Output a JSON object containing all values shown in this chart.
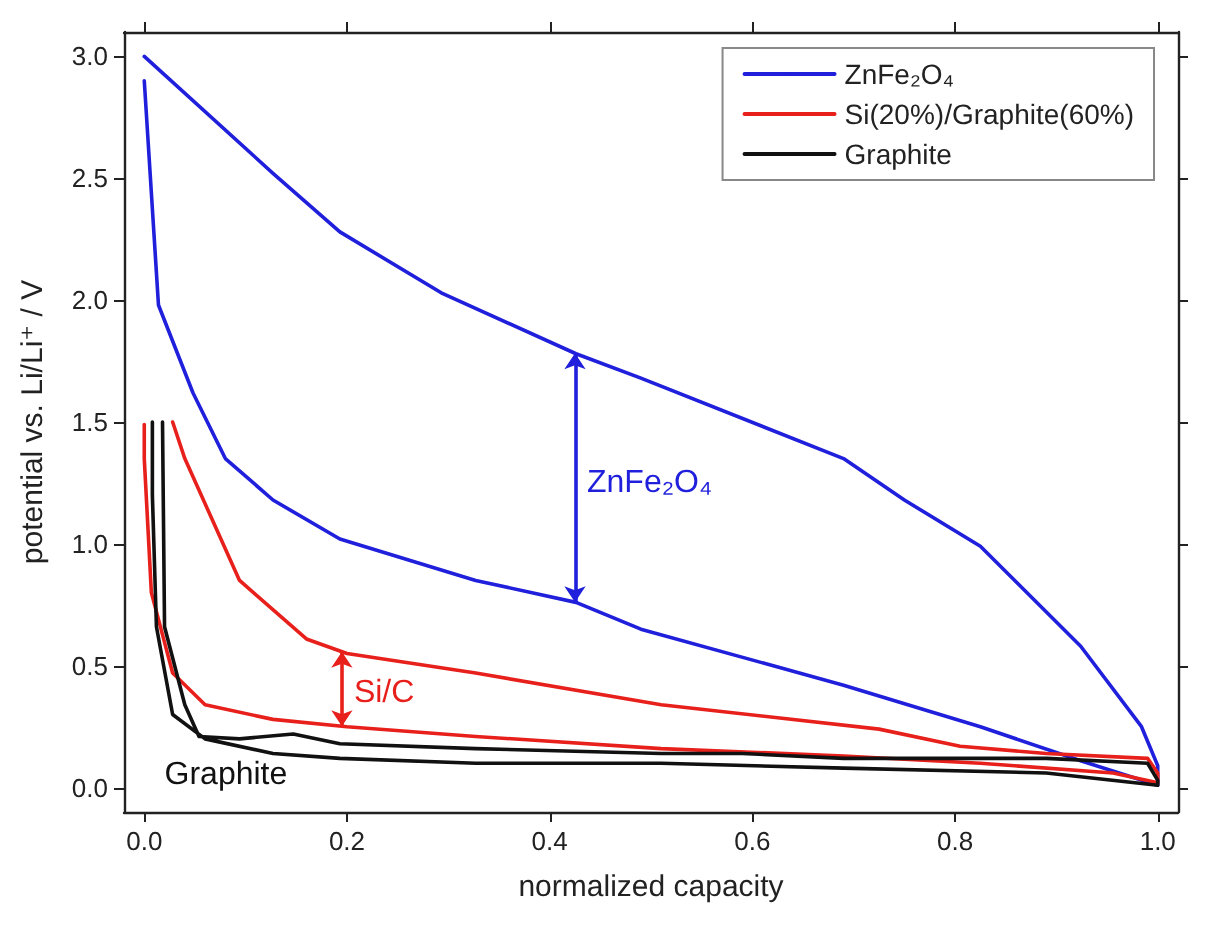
{
  "chart_data": {
    "type": "line",
    "xlabel": "normalized capacity",
    "ylabel": "potential vs. Li/Li⁺ / V",
    "xlim": [
      -0.02,
      1.02
    ],
    "ylim": [
      -0.1,
      3.1
    ],
    "xticks": [
      {
        "value": 0,
        "label": "0.0"
      },
      0.2,
      0.4,
      0.6,
      0.8,
      {
        "value": 1,
        "label": "1.0"
      }
    ],
    "yticks": [
      {
        "value": 0,
        "label": "0.0"
      },
      0.5,
      {
        "value": 1,
        "label": "1.0"
      },
      1.5,
      {
        "value": 2,
        "label": "2.0"
      },
      2.5,
      {
        "value": 3,
        "label": "3.0"
      }
    ],
    "grid": false,
    "legend": "top right",
    "marker": "none",
    "line_style": "solid",
    "series": [
      {
        "name": "ZnFe₂O₄",
        "color": "#1f1fdc",
        "x": [
          0,
          0.014,
          0.048,
          0.08,
          0.127,
          0.193,
          0.327,
          0.426,
          0.49,
          0.69,
          0.825,
          0.924,
          1.0,
          1.0,
          0.984,
          0.924,
          0.825,
          0.75,
          0.69,
          0.49,
          0.426,
          0.293,
          0.193,
          0.127,
          0
        ],
        "values": [
          2.9,
          1.98,
          1.62,
          1.35,
          1.18,
          1.02,
          0.85,
          0.76,
          0.65,
          0.42,
          0.25,
          0.11,
          0.01,
          0.09,
          0.25,
          0.58,
          0.99,
          1.18,
          1.35,
          1.68,
          1.78,
          2.03,
          2.28,
          2.52,
          3.0
        ]
      },
      {
        "name": "Si(20%)/Graphite(60%)",
        "color": "#e8201c",
        "x": [
          0,
          0,
          0.007,
          0.028,
          0.06,
          0.127,
          0.2,
          0.327,
          0.51,
          0.69,
          0.825,
          0.956,
          1.0,
          1.0,
          0.99,
          0.89,
          0.805,
          0.725,
          0.51,
          0.327,
          0.2,
          0.16,
          0.094,
          0.04,
          0.028
        ],
        "values": [
          1.49,
          1.35,
          0.8,
          0.47,
          0.34,
          0.28,
          0.25,
          0.21,
          0.16,
          0.13,
          0.1,
          0.06,
          0.02,
          0.06,
          0.12,
          0.14,
          0.17,
          0.24,
          0.34,
          0.47,
          0.55,
          0.61,
          0.85,
          1.35,
          1.5
        ]
      },
      {
        "name": "Graphite",
        "color": "#111111",
        "x": [
          0.008,
          0.008,
          0.012,
          0.028,
          0.06,
          0.127,
          0.193,
          0.327,
          0.51,
          0.69,
          0.89,
          1.0,
          1.0,
          0.99,
          0.89,
          0.69,
          0.59,
          0.51,
          0.327,
          0.193,
          0.147,
          0.094,
          0.054,
          0.04,
          0.02,
          0.018
        ],
        "values": [
          1.5,
          1.2,
          0.66,
          0.3,
          0.2,
          0.14,
          0.12,
          0.1,
          0.1,
          0.08,
          0.06,
          0.01,
          0.03,
          0.1,
          0.12,
          0.12,
          0.14,
          0.14,
          0.16,
          0.18,
          0.22,
          0.2,
          0.21,
          0.34,
          0.66,
          1.5
        ]
      }
    ],
    "annotations": [
      "ZnFe₂O₄",
      "Si/C",
      "Graphite"
    ]
  }
}
